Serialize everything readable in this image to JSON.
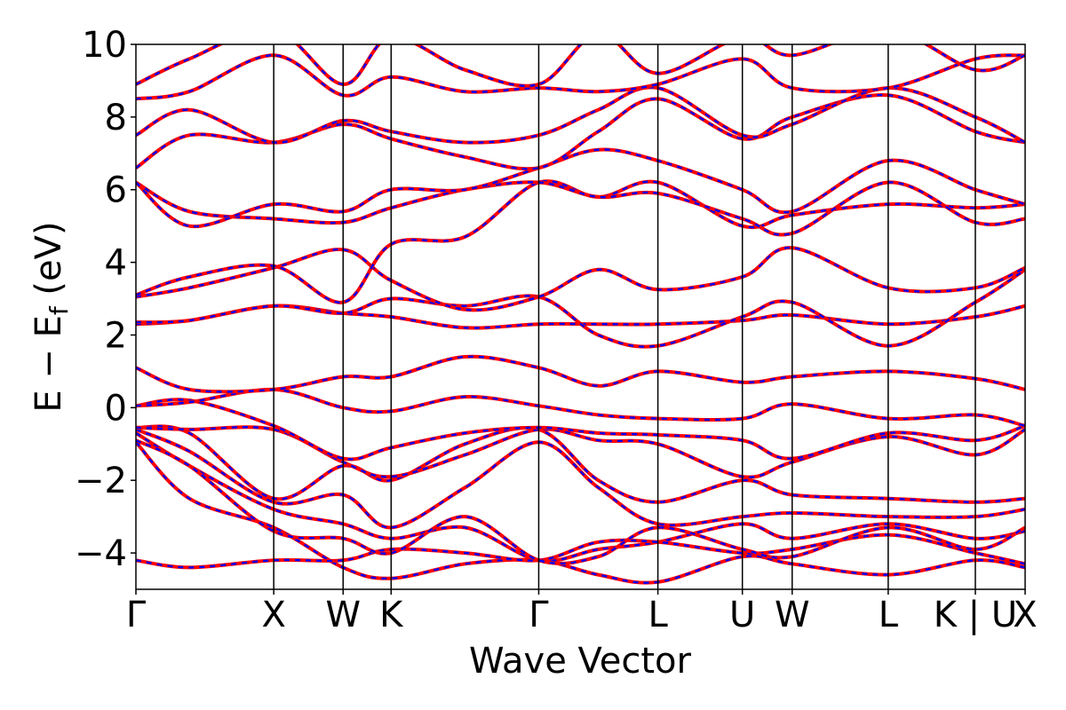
{
  "chart_data": {
    "type": "line",
    "title": "",
    "xlabel": "Wave Vector",
    "ylabel_main": "E − E",
    "ylabel_sub": "f",
    "ylabel_unit": " (eV)",
    "ylim": [
      -5,
      10
    ],
    "xlim": [
      0,
      100
    ],
    "yticks": [
      {
        "value": -4,
        "label": "−4"
      },
      {
        "value": -2,
        "label": "−2"
      },
      {
        "value": 0,
        "label": "0"
      },
      {
        "value": 2,
        "label": "2"
      },
      {
        "value": 4,
        "label": "4"
      },
      {
        "value": 6,
        "label": "6"
      },
      {
        "value": 8,
        "label": "8"
      },
      {
        "value": 10,
        "label": "10"
      }
    ],
    "kpoints": [
      {
        "x": 0,
        "label": "Γ"
      },
      {
        "x": 15.5,
        "label": "X"
      },
      {
        "x": 23.3,
        "label": "W"
      },
      {
        "x": 28.7,
        "label": "K"
      },
      {
        "x": 45.3,
        "label": "Γ"
      },
      {
        "x": 58.7,
        "label": "L"
      },
      {
        "x": 68.2,
        "label": "U"
      },
      {
        "x": 73.8,
        "label": "W"
      },
      {
        "x": 84.6,
        "label": "L"
      },
      {
        "x": 94.4,
        "label": "K | U"
      },
      {
        "x": 100,
        "label": "X"
      }
    ],
    "series_colors": {
      "calc_a": "#ff0000",
      "calc_b": "#0000ff"
    },
    "bands": [
      [
        [
          0,
          -0.95
        ],
        [
          6,
          -2.5
        ],
        [
          15.5,
          -3.3
        ],
        [
          23.3,
          -4.4
        ],
        [
          28.7,
          -4.7
        ],
        [
          37,
          -4.3
        ],
        [
          45.3,
          -4.2
        ],
        [
          52,
          -4.6
        ],
        [
          58.7,
          -4.8
        ],
        [
          68.2,
          -4.1
        ],
        [
          73.8,
          -4.3
        ],
        [
          84.6,
          -4.6
        ],
        [
          94.4,
          -4.2
        ],
        [
          100,
          -4.4
        ]
      ],
      [
        [
          0,
          -0.7
        ],
        [
          6,
          -1.6
        ],
        [
          15.5,
          -2.8
        ],
        [
          23.3,
          -3.2
        ],
        [
          28.7,
          -3.6
        ],
        [
          37,
          -3.3
        ],
        [
          45.3,
          -4.2
        ],
        [
          52,
          -3.9
        ],
        [
          58.7,
          -3.7
        ],
        [
          68.2,
          -3.2
        ],
        [
          73.8,
          -3.6
        ],
        [
          84.6,
          -3.2
        ],
        [
          94.4,
          -3.6
        ],
        [
          100,
          -3.4
        ]
      ],
      [
        [
          0,
          -0.6
        ],
        [
          6,
          -1.2
        ],
        [
          15.5,
          -2.6
        ],
        [
          23.3,
          -2.4
        ],
        [
          28.7,
          -3.3
        ],
        [
          37,
          -2.2
        ],
        [
          45.3,
          -0.95
        ],
        [
          52,
          -2.2
        ],
        [
          58.7,
          -3.2
        ],
        [
          68.2,
          -3.0
        ],
        [
          73.8,
          -2.9
        ],
        [
          84.6,
          -3.0
        ],
        [
          94.4,
          -3.0
        ],
        [
          100,
          -2.8
        ]
      ],
      [
        [
          0,
          -0.55
        ],
        [
          6,
          -0.7
        ],
        [
          15.5,
          -2.5
        ],
        [
          23.3,
          -1.6
        ],
        [
          28.7,
          -2.0
        ],
        [
          37,
          -1.0
        ],
        [
          45.3,
          -0.6
        ],
        [
          52,
          -2.0
        ],
        [
          58.7,
          -2.6
        ],
        [
          68.2,
          -2.0
        ],
        [
          73.8,
          -2.4
        ],
        [
          84.6,
          -2.5
        ],
        [
          94.4,
          -2.6
        ],
        [
          100,
          -2.5
        ]
      ],
      [
        [
          0,
          -0.55
        ],
        [
          6,
          -0.6
        ],
        [
          15.5,
          -0.6
        ],
        [
          23.3,
          -1.5
        ],
        [
          28.7,
          -1.9
        ],
        [
          37,
          -1.3
        ],
        [
          45.3,
          -0.6
        ],
        [
          52,
          -0.9
        ],
        [
          58.7,
          -1.0
        ],
        [
          68.2,
          -1.9
        ],
        [
          73.8,
          -1.5
        ],
        [
          84.6,
          -0.8
        ],
        [
          94.4,
          -1.3
        ],
        [
          100,
          -0.6
        ]
      ],
      [
        [
          0,
          0.05
        ],
        [
          6,
          0.2
        ],
        [
          15.5,
          -0.5
        ],
        [
          23.3,
          -1.4
        ],
        [
          28.7,
          -1.1
        ],
        [
          37,
          -0.7
        ],
        [
          45.3,
          -0.55
        ],
        [
          52,
          -0.7
        ],
        [
          58.7,
          -0.75
        ],
        [
          68.2,
          -0.9
        ],
        [
          73.8,
          -1.4
        ],
        [
          84.6,
          -0.7
        ],
        [
          94.4,
          -0.9
        ],
        [
          100,
          -0.5
        ]
      ],
      [
        [
          0,
          0.05
        ],
        [
          6,
          0.15
        ],
        [
          15.5,
          0.5
        ],
        [
          23.3,
          0.0
        ],
        [
          28.7,
          -0.1
        ],
        [
          37,
          0.3
        ],
        [
          45.3,
          0.05
        ],
        [
          52,
          -0.2
        ],
        [
          58.7,
          -0.3
        ],
        [
          68.2,
          -0.3
        ],
        [
          73.8,
          0.1
        ],
        [
          84.6,
          -0.3
        ],
        [
          94.4,
          -0.2
        ],
        [
          100,
          -0.5
        ]
      ],
      [
        [
          0,
          1.1
        ],
        [
          6,
          0.5
        ],
        [
          15.5,
          0.5
        ],
        [
          23.3,
          0.85
        ],
        [
          28.7,
          0.85
        ],
        [
          37,
          1.4
        ],
        [
          45.3,
          1.1
        ],
        [
          52,
          0.6
        ],
        [
          58.7,
          1.0
        ],
        [
          68.2,
          0.7
        ],
        [
          73.8,
          0.85
        ],
        [
          84.6,
          1.0
        ],
        [
          94.4,
          0.8
        ],
        [
          100,
          0.5
        ]
      ],
      [
        [
          0,
          2.3
        ],
        [
          6,
          2.4
        ],
        [
          15.5,
          2.8
        ],
        [
          23.3,
          2.6
        ],
        [
          28.7,
          2.5
        ],
        [
          37,
          2.2
        ],
        [
          45.3,
          2.3
        ],
        [
          52,
          2.3
        ],
        [
          58.7,
          2.3
        ],
        [
          68.2,
          2.4
        ],
        [
          73.8,
          2.55
        ],
        [
          84.6,
          2.3
        ],
        [
          94.4,
          2.5
        ],
        [
          100,
          2.8
        ]
      ],
      [
        [
          0,
          2.35
        ],
        [
          6,
          2.4
        ],
        [
          15.5,
          2.8
        ],
        [
          23.3,
          2.6
        ],
        [
          28.7,
          3.0
        ],
        [
          37,
          2.8
        ],
        [
          45.3,
          3.05
        ],
        [
          52,
          2.0
        ],
        [
          58.7,
          1.7
        ],
        [
          68.2,
          2.5
        ],
        [
          73.8,
          2.9
        ],
        [
          84.6,
          1.7
        ],
        [
          94.4,
          2.9
        ],
        [
          100,
          3.8
        ]
      ],
      [
        [
          0,
          3.05
        ],
        [
          6,
          3.3
        ],
        [
          15.5,
          3.85
        ],
        [
          23.3,
          4.35
        ],
        [
          28.7,
          3.5
        ],
        [
          37,
          2.7
        ],
        [
          45.3,
          3.05
        ],
        [
          52,
          3.8
        ],
        [
          58.7,
          3.25
        ],
        [
          68.2,
          3.6
        ],
        [
          73.8,
          4.4
        ],
        [
          84.6,
          3.3
        ],
        [
          94.4,
          3.3
        ],
        [
          100,
          3.85
        ]
      ],
      [
        [
          0,
          3.1
        ],
        [
          6,
          3.6
        ],
        [
          15.5,
          3.9
        ],
        [
          23.3,
          2.9
        ],
        [
          28.7,
          4.5
        ],
        [
          37,
          4.7
        ],
        [
          45.3,
          6.2
        ],
        [
          52,
          5.8
        ],
        [
          58.7,
          6.2
        ],
        [
          68.2,
          5.0
        ],
        [
          73.8,
          5.3
        ],
        [
          84.6,
          5.6
        ],
        [
          94.4,
          5.5
        ],
        [
          100,
          5.6
        ]
      ],
      [
        [
          0,
          6.2
        ],
        [
          6,
          5.4
        ],
        [
          15.5,
          5.2
        ],
        [
          23.3,
          5.1
        ],
        [
          28.7,
          5.5
        ],
        [
          37,
          6.0
        ],
        [
          45.3,
          6.2
        ],
        [
          52,
          5.8
        ],
        [
          58.7,
          5.9
        ],
        [
          68.2,
          5.2
        ],
        [
          73.8,
          4.8
        ],
        [
          84.6,
          6.2
        ],
        [
          94.4,
          5.1
        ],
        [
          100,
          5.2
        ]
      ],
      [
        [
          0,
          6.2
        ],
        [
          6,
          5.0
        ],
        [
          15.5,
          5.6
        ],
        [
          23.3,
          5.4
        ],
        [
          28.7,
          6.0
        ],
        [
          37,
          6.0
        ],
        [
          45.3,
          6.6
        ],
        [
          52,
          7.1
        ],
        [
          58.7,
          6.8
        ],
        [
          68.2,
          6.0
        ],
        [
          73.8,
          5.4
        ],
        [
          84.6,
          6.8
        ],
        [
          94.4,
          6.0
        ],
        [
          100,
          5.6
        ]
      ],
      [
        [
          0,
          6.6
        ],
        [
          6,
          7.5
        ],
        [
          15.5,
          7.3
        ],
        [
          23.3,
          7.8
        ],
        [
          28.7,
          7.4
        ],
        [
          37,
          6.9
        ],
        [
          45.3,
          6.6
        ],
        [
          52,
          7.6
        ],
        [
          58.7,
          8.5
        ],
        [
          68.2,
          7.4
        ],
        [
          73.8,
          8.0
        ],
        [
          84.6,
          8.6
        ],
        [
          94.4,
          7.6
        ],
        [
          100,
          7.3
        ]
      ],
      [
        [
          0,
          7.5
        ],
        [
          6,
          8.2
        ],
        [
          15.5,
          7.3
        ],
        [
          23.3,
          7.9
        ],
        [
          28.7,
          7.6
        ],
        [
          37,
          7.3
        ],
        [
          45.3,
          7.5
        ],
        [
          52,
          8.2
        ],
        [
          58.7,
          8.8
        ],
        [
          68.2,
          7.5
        ],
        [
          73.8,
          7.8
        ],
        [
          84.6,
          8.8
        ],
        [
          94.4,
          8.0
        ],
        [
          100,
          7.3
        ]
      ],
      [
        [
          0,
          8.5
        ],
        [
          6,
          8.7
        ],
        [
          15.5,
          9.7
        ],
        [
          23.3,
          8.6
        ],
        [
          28.7,
          9.1
        ],
        [
          37,
          8.7
        ],
        [
          45.3,
          8.8
        ],
        [
          52,
          8.7
        ],
        [
          58.7,
          8.9
        ],
        [
          68.2,
          9.6
        ],
        [
          73.8,
          8.8
        ],
        [
          84.6,
          8.8
        ],
        [
          94.4,
          9.6
        ],
        [
          100,
          9.7
        ]
      ],
      [
        [
          0,
          8.9
        ],
        [
          6,
          9.6
        ],
        [
          15.5,
          10.4
        ],
        [
          23.3,
          8.9
        ],
        [
          28.7,
          10.2
        ],
        [
          37,
          9.3
        ],
        [
          45.3,
          8.9
        ],
        [
          52,
          10.3
        ],
        [
          58.7,
          9.2
        ],
        [
          68.2,
          10.2
        ],
        [
          73.8,
          9.7
        ],
        [
          84.6,
          10.4
        ],
        [
          94.4,
          9.3
        ],
        [
          100,
          9.7
        ]
      ],
      [
        [
          0,
          -4.2
        ],
        [
          6,
          -4.4
        ],
        [
          15.5,
          -4.2
        ],
        [
          23.3,
          -4.2
        ],
        [
          28.7,
          -3.9
        ],
        [
          37,
          -4.0
        ],
        [
          45.3,
          -4.2
        ],
        [
          52,
          -3.7
        ],
        [
          58.7,
          -3.7
        ],
        [
          68.2,
          -4.0
        ],
        [
          73.8,
          -3.9
        ],
        [
          84.6,
          -3.5
        ],
        [
          94.4,
          -4.0
        ],
        [
          100,
          -4.3
        ]
      ],
      [
        [
          0,
          -0.9
        ],
        [
          6,
          -1.6
        ],
        [
          15.5,
          -3.4
        ],
        [
          23.3,
          -3.6
        ],
        [
          28.7,
          -4.0
        ],
        [
          37,
          -3.0
        ],
        [
          45.3,
          -4.2
        ],
        [
          52,
          -4.1
        ],
        [
          58.7,
          -3.3
        ],
        [
          68.2,
          -3.9
        ],
        [
          73.8,
          -4.1
        ],
        [
          84.6,
          -3.3
        ],
        [
          94.4,
          -3.9
        ],
        [
          100,
          -3.3
        ]
      ]
    ]
  }
}
